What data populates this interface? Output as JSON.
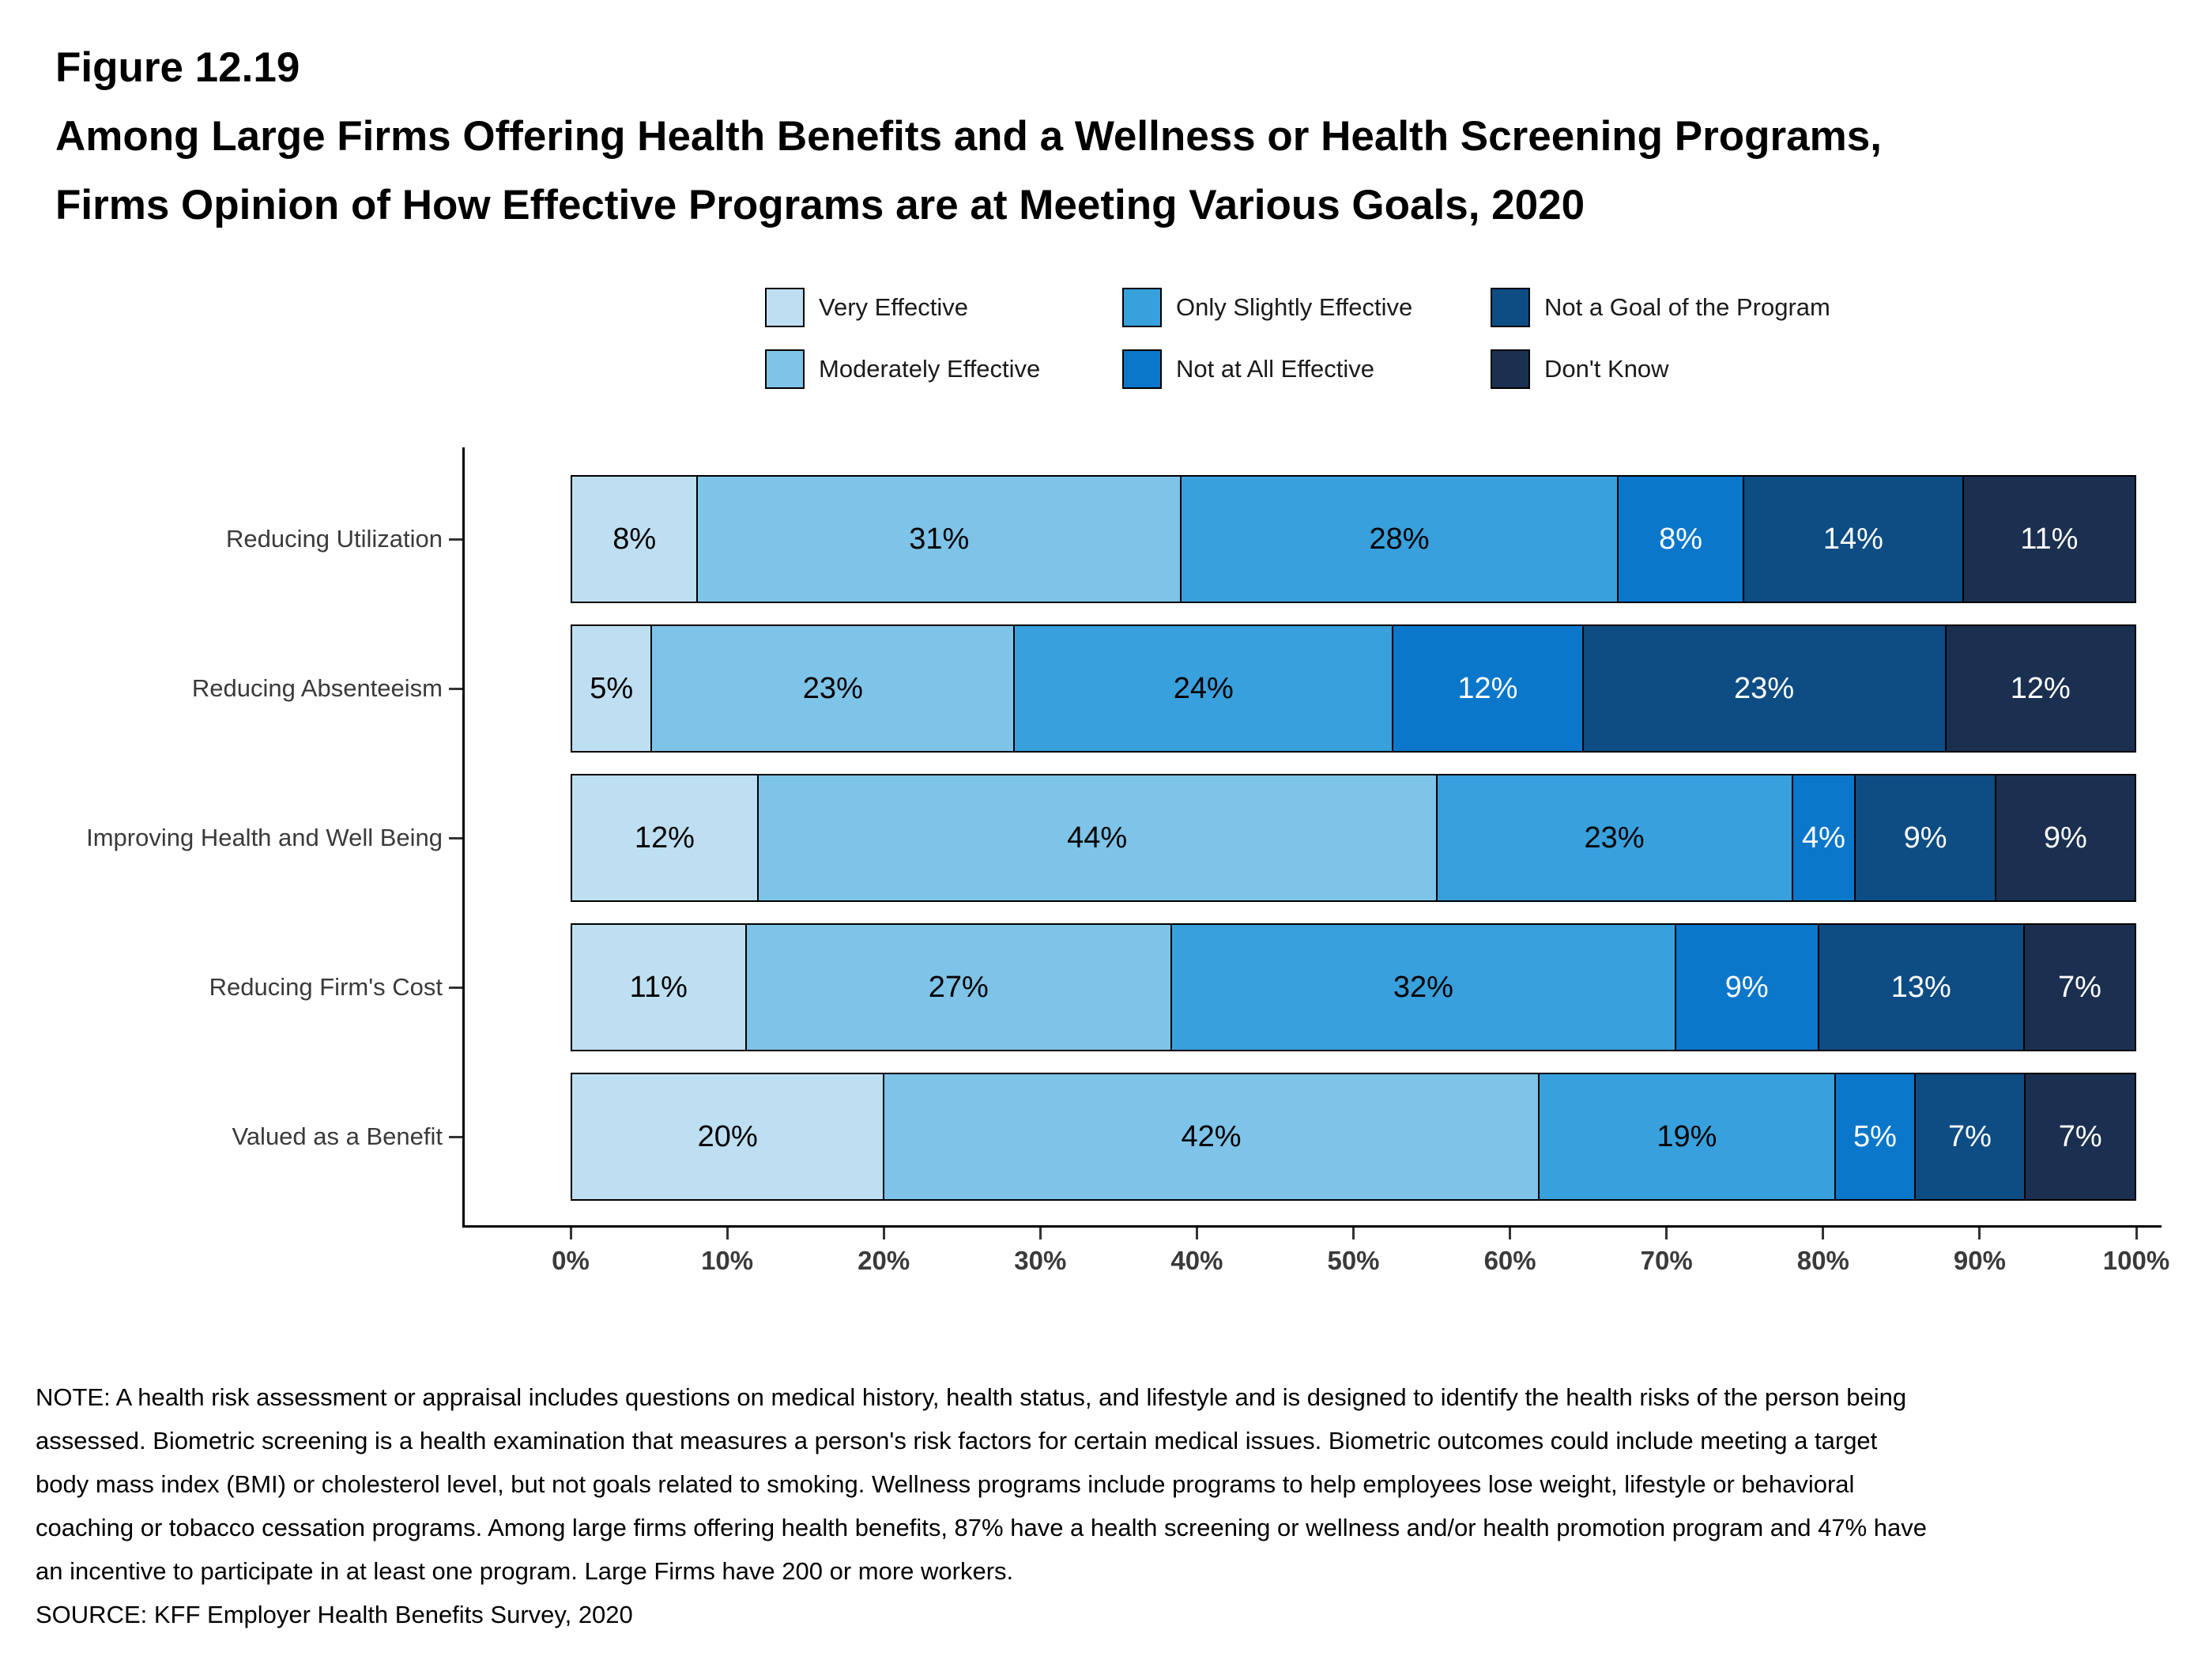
{
  "header": {
    "figure_label": "Figure 12.19",
    "title_line1": "Among Large Firms Offering Health Benefits and a Wellness or Health Screening Programs,",
    "title_line2": "Firms Opinion of How Effective Programs are at Meeting Various Goals, 2020"
  },
  "chart_data": {
    "type": "bar",
    "orientation": "horizontal",
    "stacked": true,
    "grid": false,
    "legend_position": "top",
    "value_suffix": "%",
    "xlim": [
      0,
      100
    ],
    "x_ticks": [
      "0%",
      "10%",
      "20%",
      "30%",
      "40%",
      "50%",
      "60%",
      "70%",
      "80%",
      "90%",
      "100%"
    ],
    "categories": [
      "Reducing Utilization",
      "Reducing Absenteeism",
      "Improving Health and Well Being",
      "Reducing Firm's Cost",
      "Valued as a Benefit"
    ],
    "series": [
      {
        "name": "Very Effective",
        "color": "#BEDFF1",
        "label_color": "#000000",
        "values": [
          8,
          5,
          12,
          11,
          20
        ]
      },
      {
        "name": "Moderately Effective",
        "color": "#7EC3E8",
        "label_color": "#000000",
        "values": [
          31,
          23,
          44,
          27,
          42
        ]
      },
      {
        "name": "Only Slightly Effective",
        "color": "#38A0DC",
        "label_color": "#000000",
        "values": [
          28,
          24,
          23,
          32,
          19
        ]
      },
      {
        "name": "Not at All Effective",
        "color": "#0B77CB",
        "label_color": "#ffffff",
        "values": [
          8,
          12,
          4,
          9,
          5
        ]
      },
      {
        "name": "Not a Goal of the Program",
        "color": "#0E4C84",
        "label_color": "#ffffff",
        "values": [
          14,
          23,
          9,
          13,
          7
        ]
      },
      {
        "name": "Don't Know",
        "color": "#1B3050",
        "label_color": "#ffffff",
        "values": [
          11,
          12,
          9,
          7,
          7
        ]
      }
    ]
  },
  "footer": {
    "note": "NOTE: A health risk assessment or appraisal includes questions on medical history, health status, and lifestyle and is designed to identify the health risks of the person being assessed. Biometric screening is a health examination that measures a person's risk factors for certain medical issues. Biometric outcomes could include meeting a target body mass index (BMI) or cholesterol level, but not goals related to smoking. Wellness programs include programs to help employees lose weight, lifestyle or behavioral coaching or tobacco cessation programs. Among large firms offering health benefits, 87% have a health screening or wellness and/or health promotion program and 47% have an incentive to participate in at least one program. Large Firms have 200 or more workers.",
    "source": "SOURCE: KFF Employer Health Benefits Survey, 2020"
  }
}
